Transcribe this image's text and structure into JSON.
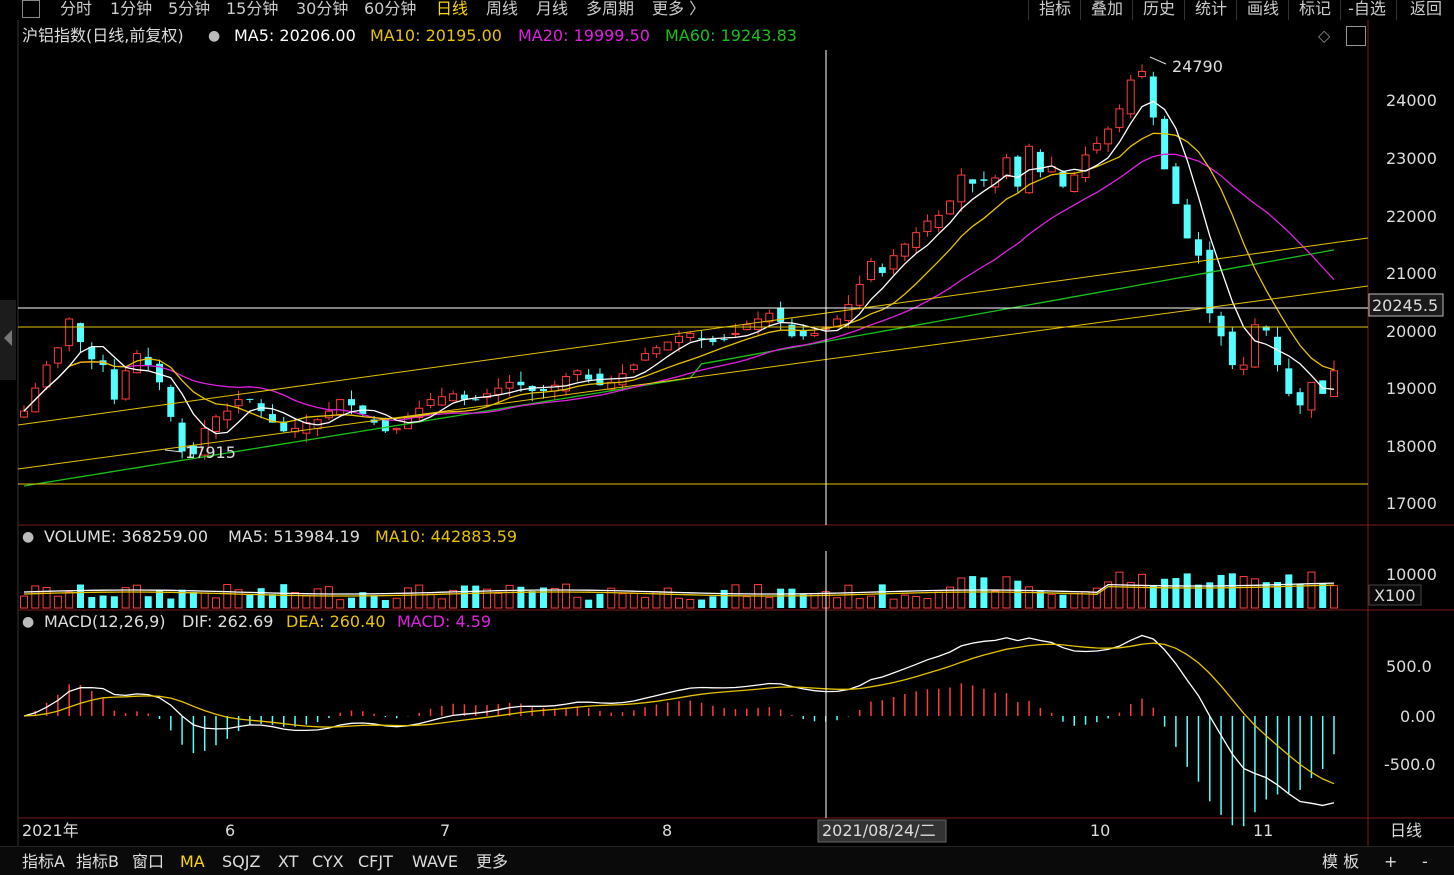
{
  "toolbar": {
    "periods": [
      "分时",
      "1分钟",
      "5分钟",
      "15分钟",
      "30分钟",
      "60分钟",
      "日线",
      "周线",
      "月线",
      "多周期",
      "更多 〉"
    ],
    "active_period": "日线",
    "right_buttons": [
      "指标",
      "叠加",
      "历史",
      "统计",
      "画线",
      "标记",
      "-自选",
      "返回"
    ]
  },
  "main_panel": {
    "title": "沪铝指数(日线,前复权)",
    "ma5": "MA5: 20206.00",
    "ma10": "MA10: 20195.00",
    "ma20": "MA20: 19999.50",
    "ma60": "MA60: 19243.83",
    "high_label": "24790",
    "low_label": "17915",
    "current_price": "20245.5",
    "y_ticks": [
      "24000",
      "23000",
      "22000",
      "21000",
      "20000",
      "19000",
      "18000",
      "17000"
    ]
  },
  "volume_panel": {
    "title": "VOLUME: 368259.00",
    "ma5": "MA5: 513984.19",
    "ma10": "MA10: 442883.59",
    "y_tick": "10000",
    "unit": "X100"
  },
  "macd_panel": {
    "title": "MACD(12,26,9)",
    "dif": "DIF: 262.69",
    "dea": "DEA: 260.40",
    "macd": "MACD: 4.59",
    "y_ticks": [
      "500.0",
      "0.00",
      "-500.0"
    ]
  },
  "x_axis": {
    "labels": [
      "2021年",
      "6",
      "7",
      "8",
      "10",
      "11"
    ],
    "cursor_date": "2021/08/24/二",
    "period_label": "日线"
  },
  "bottom_bar": {
    "items": [
      "指标A",
      "指标B",
      "窗口",
      "MA",
      "SQJZ",
      "XT",
      "CYX",
      "CFJT",
      "WAVE",
      "更多"
    ],
    "active": "MA",
    "template": "模 板",
    "plus": "+",
    "minus": "-"
  },
  "colors": {
    "up": "#ff3b3b",
    "down": "#54ffff",
    "ma5": "#ffffff",
    "ma10": "#e6c200",
    "ma20": "#e020e0",
    "ma60": "#19c019",
    "accent": "#ffd400"
  },
  "price_series": {
    "closes": [
      18700,
      19100,
      19500,
      19800,
      20300,
      19900,
      19600,
      19500,
      18900,
      19400,
      19700,
      19500,
      19200,
      18600,
      18000,
      17950,
      18400,
      18600,
      18700,
      18900,
      18900,
      18700,
      18500,
      18350,
      18400,
      18500,
      18550,
      18700,
      18900,
      18800,
      18650,
      18500,
      18350,
      18400,
      18600,
      18750,
      18900,
      18950,
      19000,
      18900,
      18900,
      19000,
      19100,
      19200,
      19150,
      19050,
      19050,
      19150,
      19300,
      19400,
      19250,
      19150,
      19200,
      19350,
      19500,
      19700,
      19800,
      19900,
      20000,
      20050,
      19950,
      19900,
      19950,
      20050,
      20200,
      20300,
      20400,
      20250,
      20000,
      20000,
      20050,
      20150,
      20300,
      20550,
      20900,
      21300,
      21100,
      21400,
      21600,
      21800,
      22000,
      22100,
      22350,
      22800,
      22650,
      22700,
      22750,
      23100,
      22600,
      23300,
      22850,
      22950,
      22600,
      22800,
      23150,
      23350,
      23600,
      23950,
      24450,
      24600,
      23800,
      22900,
      22300,
      21700,
      21400,
      20400,
      20000,
      19500,
      19500,
      20200,
      20100,
      19500,
      19000,
      18800,
      19200,
      19000,
      19400
    ]
  }
}
